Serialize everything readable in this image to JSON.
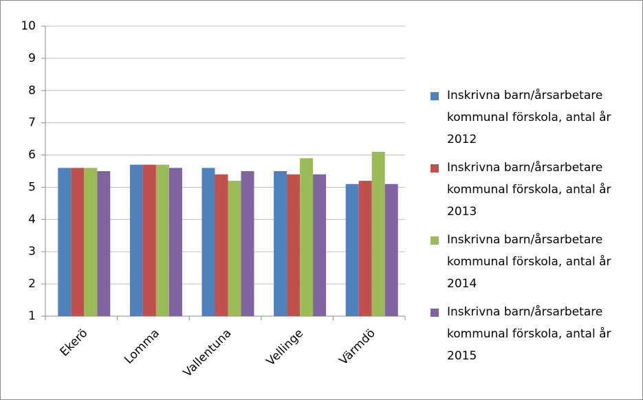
{
  "chart_data": {
    "type": "bar",
    "categories": [
      "Ekerö",
      "Lomma",
      "Vallentuna",
      "Vellinge",
      "Värmdö"
    ],
    "series": [
      {
        "name": "Inskrivna barn/årsarbetare kommunal förskola, antal år 2012",
        "color": "#4f81bd",
        "values": [
          5.6,
          5.7,
          5.6,
          5.5,
          5.1
        ]
      },
      {
        "name": "Inskrivna barn/årsarbetare kommunal förskola, antal år 2013",
        "color": "#c0504d",
        "values": [
          5.6,
          5.7,
          5.4,
          5.4,
          5.2
        ]
      },
      {
        "name": "Inskrivna barn/årsarbetare kommunal förskola, antal år 2014",
        "color": "#9bbb59",
        "values": [
          5.6,
          5.7,
          5.2,
          5.9,
          6.1
        ]
      },
      {
        "name": "Inskrivna barn/årsarbetare kommunal förskola, antal år 2015",
        "color": "#8064a2",
        "values": [
          5.5,
          5.6,
          5.5,
          5.4,
          5.1
        ]
      }
    ],
    "ylim": [
      1,
      10
    ],
    "yticks": [
      1,
      2,
      3,
      4,
      5,
      6,
      7,
      8,
      9,
      10
    ],
    "grid": true,
    "legend": "right"
  }
}
